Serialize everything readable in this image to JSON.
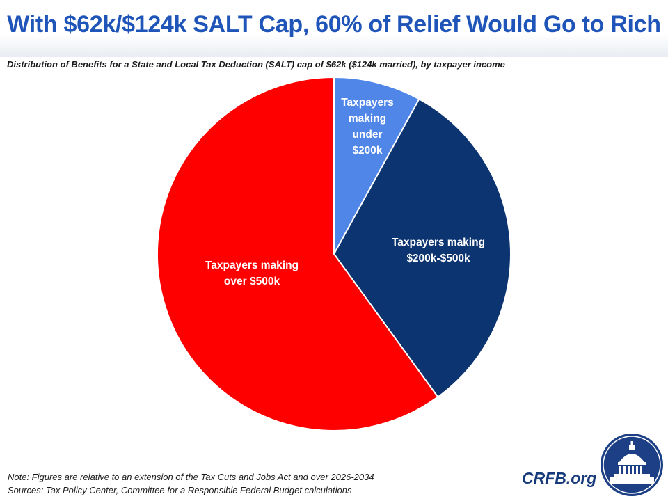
{
  "header": {
    "title": "With $62k/$124k SALT Cap, 60% of Relief Would Go to Rich",
    "subtitle": "Distribution of Benefits for a State and Local Tax Deduction (SALT) cap of $62k ($124k married), by taxpayer income"
  },
  "chart_data": {
    "type": "pie",
    "title": "With $62k/$124k SALT Cap, 60% of Relief Would Go to Rich",
    "slices": [
      {
        "label": "Taxpayers making under $200k",
        "label_lines": [
          "Taxpayers",
          "making",
          "under",
          "$200k"
        ],
        "value": 8,
        "color": "#4f86e8"
      },
      {
        "label": "Taxpayers making $200k-$500k",
        "label_lines": [
          "Taxpayers making",
          "$200k-$500k"
        ],
        "value": 32,
        "color": "#0c3470"
      },
      {
        "label": "Taxpayers making over $500k",
        "label_lines": [
          "Taxpayers making",
          "over $500k"
        ],
        "value": 60,
        "color": "#fe0000"
      }
    ],
    "start": "top",
    "direction": "clockwise"
  },
  "footer": {
    "note": "Note: Figures are relative to an extension of the Tax Cuts and Jobs Act and over 2026-2034",
    "sources": "Sources: Tax Policy Center, Committee for a Responsible Federal Budget calculations",
    "brand": "CRFB.org"
  }
}
